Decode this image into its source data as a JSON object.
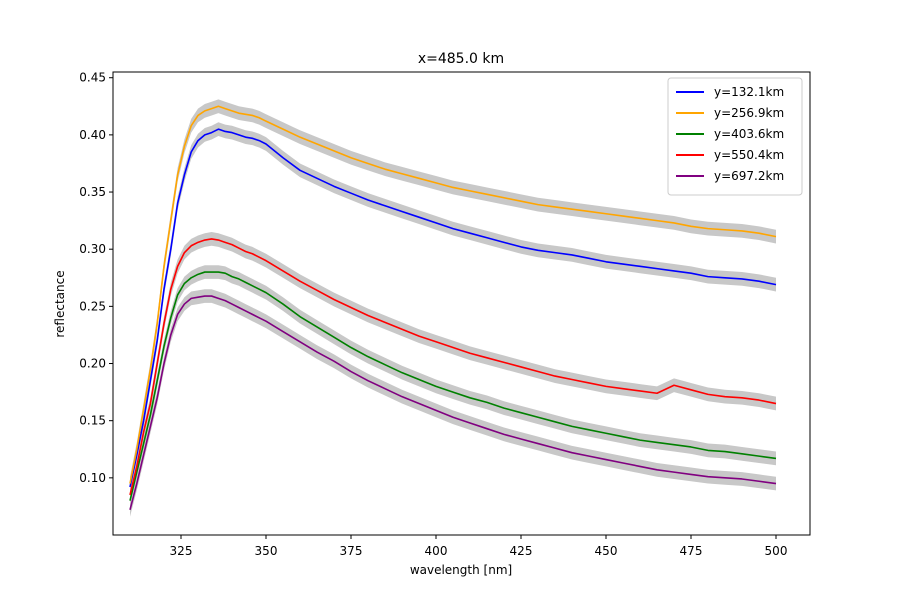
{
  "chart_data": {
    "type": "line",
    "title": "x=485.0 km",
    "xlabel": "wavelength [nm]",
    "ylabel": "reflectance",
    "xlim": [
      305,
      510
    ],
    "ylim": [
      0.05,
      0.455
    ],
    "xticks": [
      325,
      350,
      375,
      400,
      425,
      450,
      475,
      500
    ],
    "yticks": [
      0.1,
      0.15,
      0.2,
      0.25,
      0.3,
      0.35,
      0.4,
      0.45
    ],
    "xtick_labels": [
      "325",
      "350",
      "375",
      "400",
      "425",
      "450",
      "475",
      "500"
    ],
    "ytick_labels": [
      "0.10",
      "0.15",
      "0.20",
      "0.25",
      "0.30",
      "0.35",
      "0.40",
      "0.45"
    ],
    "grid": false,
    "legend_position": "top-right",
    "uncertainty_band_color": "#c8c8c8",
    "series": [
      {
        "name": "y=132.1km",
        "color": "#0000ff",
        "x": [
          310,
          312,
          314,
          316,
          318,
          320,
          322,
          324,
          326,
          328,
          330,
          332,
          334,
          336,
          338,
          340,
          342,
          344,
          346,
          348,
          350,
          355,
          360,
          365,
          370,
          375,
          380,
          385,
          390,
          395,
          400,
          405,
          410,
          415,
          420,
          425,
          430,
          435,
          440,
          445,
          450,
          455,
          460,
          465,
          470,
          475,
          480,
          485,
          490,
          495,
          500
        ],
        "y": [
          0.092,
          0.12,
          0.15,
          0.185,
          0.22,
          0.265,
          0.3,
          0.34,
          0.365,
          0.385,
          0.395,
          0.4,
          0.402,
          0.405,
          0.403,
          0.402,
          0.4,
          0.398,
          0.397,
          0.395,
          0.392,
          0.38,
          0.369,
          0.362,
          0.355,
          0.349,
          0.343,
          0.338,
          0.333,
          0.328,
          0.323,
          0.318,
          0.314,
          0.31,
          0.306,
          0.302,
          0.299,
          0.297,
          0.295,
          0.292,
          0.289,
          0.287,
          0.285,
          0.283,
          0.281,
          0.279,
          0.276,
          0.275,
          0.274,
          0.272,
          0.269
        ]
      },
      {
        "name": "y=256.9km",
        "color": "#ffa500",
        "x": [
          310,
          312,
          314,
          316,
          318,
          320,
          322,
          324,
          326,
          328,
          330,
          332,
          334,
          336,
          338,
          340,
          342,
          344,
          346,
          348,
          350,
          355,
          360,
          365,
          370,
          375,
          380,
          385,
          390,
          395,
          400,
          405,
          410,
          415,
          420,
          425,
          430,
          435,
          440,
          445,
          450,
          455,
          460,
          465,
          470,
          475,
          480,
          485,
          490,
          495,
          500
        ],
        "y": [
          0.095,
          0.125,
          0.16,
          0.195,
          0.235,
          0.285,
          0.325,
          0.365,
          0.39,
          0.408,
          0.417,
          0.421,
          0.423,
          0.425,
          0.423,
          0.421,
          0.419,
          0.418,
          0.417,
          0.415,
          0.412,
          0.405,
          0.398,
          0.392,
          0.386,
          0.38,
          0.375,
          0.37,
          0.366,
          0.362,
          0.358,
          0.354,
          0.351,
          0.348,
          0.345,
          0.342,
          0.339,
          0.337,
          0.335,
          0.333,
          0.331,
          0.329,
          0.327,
          0.325,
          0.323,
          0.32,
          0.318,
          0.317,
          0.316,
          0.314,
          0.311
        ]
      },
      {
        "name": "y=403.6km",
        "color": "#008000",
        "x": [
          310,
          312,
          314,
          316,
          318,
          320,
          322,
          324,
          326,
          328,
          330,
          332,
          334,
          336,
          338,
          340,
          342,
          344,
          346,
          348,
          350,
          355,
          360,
          365,
          370,
          375,
          380,
          385,
          390,
          395,
          400,
          405,
          410,
          415,
          420,
          425,
          430,
          435,
          440,
          445,
          450,
          455,
          460,
          465,
          470,
          475,
          480,
          485,
          490,
          495,
          500
        ],
        "y": [
          0.08,
          0.105,
          0.13,
          0.155,
          0.185,
          0.215,
          0.24,
          0.26,
          0.27,
          0.275,
          0.278,
          0.28,
          0.28,
          0.28,
          0.279,
          0.276,
          0.274,
          0.271,
          0.268,
          0.265,
          0.262,
          0.252,
          0.241,
          0.232,
          0.223,
          0.214,
          0.206,
          0.199,
          0.192,
          0.186,
          0.18,
          0.175,
          0.17,
          0.166,
          0.161,
          0.157,
          0.153,
          0.149,
          0.145,
          0.142,
          0.139,
          0.136,
          0.133,
          0.131,
          0.129,
          0.127,
          0.124,
          0.123,
          0.121,
          0.119,
          0.117
        ]
      },
      {
        "name": "y=550.4km",
        "color": "#ff0000",
        "x": [
          310,
          312,
          314,
          316,
          318,
          320,
          322,
          324,
          326,
          328,
          330,
          332,
          334,
          336,
          338,
          340,
          342,
          344,
          346,
          348,
          350,
          355,
          360,
          365,
          370,
          375,
          380,
          385,
          390,
          395,
          400,
          405,
          410,
          415,
          420,
          425,
          430,
          435,
          440,
          445,
          450,
          455,
          460,
          465,
          470,
          475,
          480,
          485,
          490,
          495,
          500
        ],
        "y": [
          0.085,
          0.11,
          0.14,
          0.165,
          0.2,
          0.235,
          0.265,
          0.285,
          0.297,
          0.303,
          0.306,
          0.308,
          0.309,
          0.308,
          0.306,
          0.304,
          0.301,
          0.298,
          0.296,
          0.293,
          0.29,
          0.281,
          0.272,
          0.264,
          0.256,
          0.249,
          0.242,
          0.236,
          0.23,
          0.224,
          0.219,
          0.214,
          0.209,
          0.205,
          0.201,
          0.197,
          0.193,
          0.189,
          0.186,
          0.183,
          0.18,
          0.178,
          0.176,
          0.174,
          0.181,
          0.177,
          0.173,
          0.171,
          0.17,
          0.168,
          0.165
        ]
      },
      {
        "name": "y=697.2km",
        "color": "#800080",
        "x": [
          310,
          312,
          314,
          316,
          318,
          320,
          322,
          324,
          326,
          328,
          330,
          332,
          334,
          336,
          338,
          340,
          342,
          344,
          346,
          348,
          350,
          355,
          360,
          365,
          370,
          375,
          380,
          385,
          390,
          395,
          400,
          405,
          410,
          415,
          420,
          425,
          430,
          435,
          440,
          445,
          450,
          455,
          460,
          465,
          470,
          475,
          480,
          485,
          490,
          495,
          500
        ],
        "y": [
          0.072,
          0.095,
          0.12,
          0.145,
          0.17,
          0.2,
          0.225,
          0.243,
          0.252,
          0.257,
          0.258,
          0.259,
          0.259,
          0.257,
          0.255,
          0.252,
          0.249,
          0.246,
          0.243,
          0.24,
          0.237,
          0.228,
          0.219,
          0.21,
          0.202,
          0.193,
          0.185,
          0.178,
          0.171,
          0.165,
          0.159,
          0.153,
          0.148,
          0.143,
          0.138,
          0.134,
          0.13,
          0.126,
          0.122,
          0.119,
          0.116,
          0.113,
          0.11,
          0.107,
          0.105,
          0.103,
          0.101,
          0.1,
          0.099,
          0.097,
          0.095
        ]
      }
    ]
  }
}
